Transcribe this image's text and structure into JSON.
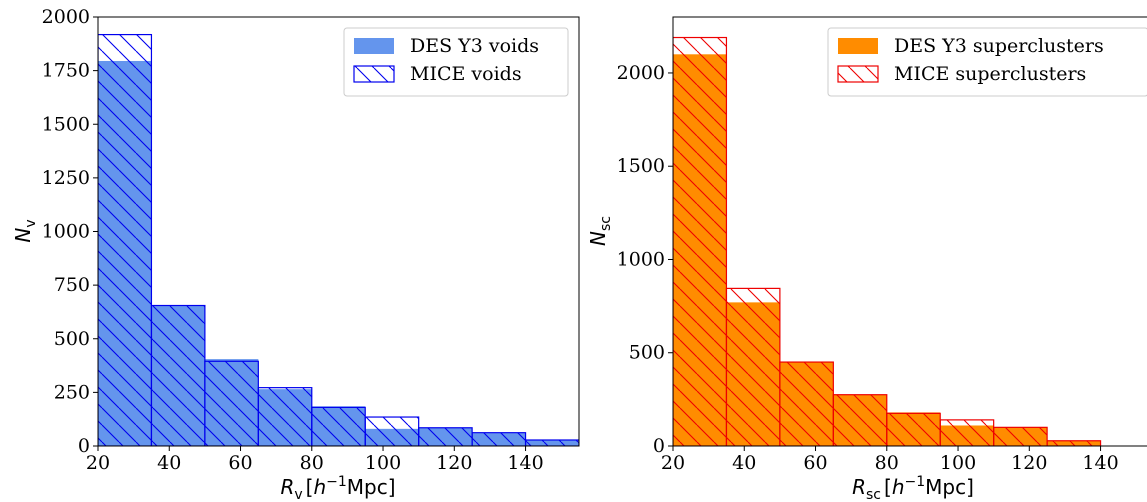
{
  "chart_data": [
    {
      "type": "bar",
      "panel": "left",
      "xlabel": "R_v [h^-1 Mpc]",
      "xlabel_parts": {
        "main": "R",
        "sub": "v",
        "bracket_open": "[",
        "h": "h",
        "sup": "−1",
        "unit": "Mpc]"
      },
      "ylabel": "N_v",
      "ylabel_parts": {
        "main": "N",
        "sub": "v"
      },
      "xlim": [
        20,
        155
      ],
      "ylim": [
        0,
        2000
      ],
      "xticks": [
        20,
        40,
        60,
        80,
        100,
        120,
        140
      ],
      "yticks": [
        0,
        250,
        500,
        750,
        1000,
        1250,
        1500,
        1750,
        2000
      ],
      "bin_edges": [
        20,
        35,
        50,
        65,
        80,
        95,
        110,
        125,
        140,
        155
      ],
      "legend_position": "upper right",
      "series": [
        {
          "name": "DES Y3 voids",
          "style": "filled",
          "color": "#6495ed",
          "values": [
            1795,
            655,
            405,
            265,
            185,
            80,
            85,
            60,
            30
          ]
        },
        {
          "name": "MICE voids",
          "style": "hatched",
          "color": "#0000ee",
          "values": [
            1918,
            655,
            395,
            272,
            180,
            135,
            85,
            62,
            28
          ]
        }
      ]
    },
    {
      "type": "bar",
      "panel": "right",
      "xlabel": "R_sc [h^-1 Mpc]",
      "xlabel_parts": {
        "main": "R",
        "sub": "sc",
        "bracket_open": "[",
        "h": "h",
        "sup": "−1",
        "unit": "Mpc]"
      },
      "ylabel": "N_sc",
      "ylabel_parts": {
        "main": "N",
        "sub": "sc"
      },
      "xlim": [
        20,
        155
      ],
      "ylim": [
        0,
        2300
      ],
      "xticks": [
        20,
        40,
        60,
        80,
        100,
        120,
        140
      ],
      "yticks": [
        0,
        500,
        1000,
        1500,
        2000
      ],
      "bin_edges": [
        20,
        35,
        50,
        65,
        80,
        95,
        110,
        125,
        140
      ],
      "legend_position": "upper right",
      "series": [
        {
          "name": "DES Y3 superclusters",
          "style": "filled",
          "color": "#ff8c00",
          "values": [
            2100,
            770,
            450,
            275,
            180,
            110,
            100,
            30
          ]
        },
        {
          "name": "MICE superclusters",
          "style": "hatched",
          "color": "#ee0000",
          "values": [
            2190,
            845,
            450,
            275,
            175,
            140,
            100,
            28
          ]
        }
      ]
    }
  ]
}
